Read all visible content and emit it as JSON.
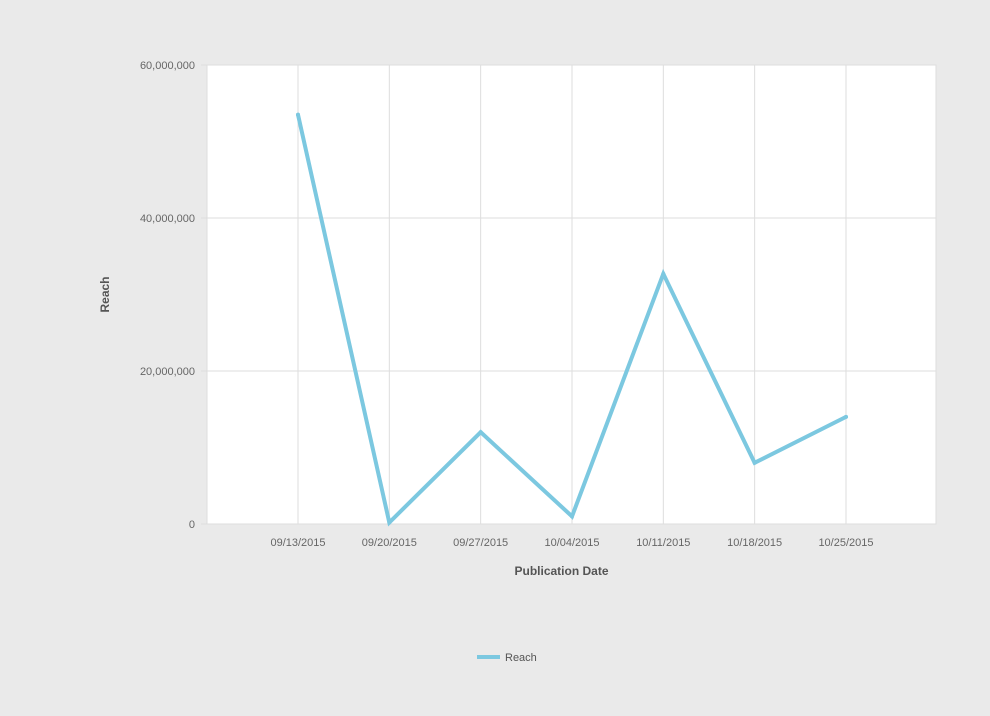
{
  "colors": {
    "background": "#eaeaea",
    "plot_background": "#ffffff",
    "grid": "#dddddd",
    "series": "#7cc8e0"
  },
  "chart_data": {
    "type": "line",
    "title": "",
    "xlabel": "Publication Date",
    "ylabel": "Reach",
    "categories": [
      "09/13/2015",
      "09/20/2015",
      "09/27/2015",
      "10/04/2015",
      "10/11/2015",
      "10/18/2015",
      "10/25/2015"
    ],
    "series": [
      {
        "name": "Reach",
        "values": [
          53500000,
          200000,
          12000000,
          1000000,
          32700000,
          8000000,
          14000000
        ]
      }
    ],
    "ylim": [
      0,
      60000000
    ],
    "yticks": [
      0,
      20000000,
      40000000,
      60000000
    ],
    "ytick_labels": [
      "0",
      "20,000,000",
      "40,000,000",
      "60,000,000"
    ],
    "grid": true,
    "legend_position": "bottom"
  }
}
